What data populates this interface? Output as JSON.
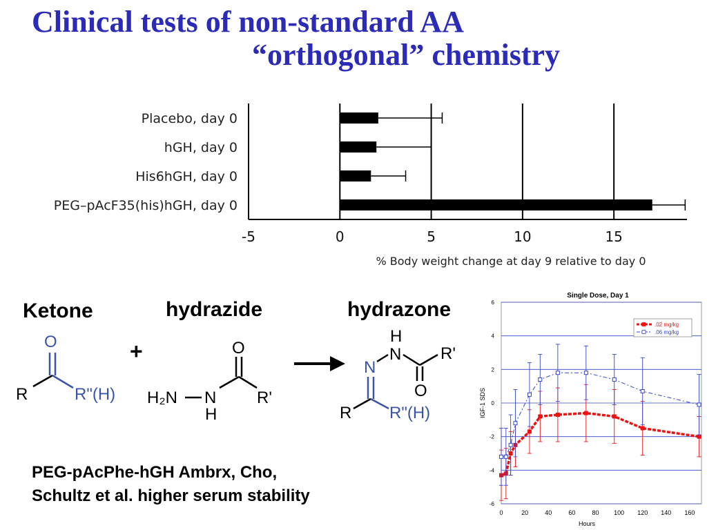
{
  "slide": {
    "title_line1": "Clinical tests of non-standard AA",
    "title_line2": "“orthogonal” chemistry",
    "caption_line1": "PEG-pAcPhe-hGH  Ambrx, Cho,",
    "caption_line2": "Schultz et al. higher serum stability"
  },
  "reaction": {
    "reactant1": "Ketone",
    "plus": "+",
    "reactant2": "hydrazide",
    "product": "hydrazone",
    "atoms": {
      "O": "O",
      "R": "R",
      "R_dblprime_H": "R\"(H)",
      "H2N": "H₂N",
      "N": "N",
      "H": "H",
      "R_prime": "R'"
    }
  },
  "chart_data": [
    {
      "type": "bar",
      "orientation": "horizontal",
      "categories": [
        "Placebo, day 0",
        "hGH, day 0",
        "His6hGH, day 0",
        "PEG–pAcF35(his)hGH, day 0"
      ],
      "values": [
        2.1,
        2.0,
        1.7,
        17.1
      ],
      "errors": [
        3.5,
        3.0,
        1.9,
        1.8
      ],
      "xlabel": "% Body weight change at day 9 relative to day 0",
      "xlim": [
        -5,
        19
      ],
      "xticks": [
        "-5",
        "0",
        "5",
        "10",
        "15"
      ],
      "gridlines_at": [
        0,
        5,
        10,
        15
      ]
    },
    {
      "type": "line",
      "title": "Single Dose, Day 1",
      "xlabel": "Hours",
      "ylabel": "IGF-1 SDS",
      "xlim": [
        0,
        170
      ],
      "ylim": [
        -6,
        6
      ],
      "xticks": [
        "0",
        "20",
        "40",
        "60",
        "80",
        "100",
        "120",
        "140",
        "160"
      ],
      "yticks": [
        "6",
        "4",
        "2",
        "0",
        "-2",
        "-4",
        "-6"
      ],
      "legend_position": "top-right",
      "colors": [
        "#ee1111",
        "#3344cc"
      ],
      "series": [
        {
          "name": ".02 mg/kg",
          "x": [
            0,
            4,
            8,
            12,
            24,
            33,
            48,
            72,
            96,
            120,
            168
          ],
          "y": [
            -4.3,
            -4.2,
            -3.0,
            -2.5,
            -1.7,
            -0.8,
            -0.7,
            -0.6,
            -0.8,
            -1.5,
            -2.0
          ],
          "err": [
            1.5,
            1.5,
            1.3,
            1.3,
            1.3,
            1.5,
            1.6,
            1.7,
            1.6,
            1.6,
            1.2
          ]
        },
        {
          "name": ".06 mg/kg",
          "x": [
            0,
            4,
            8,
            12,
            24,
            33,
            48,
            72,
            96,
            120,
            168
          ],
          "y": [
            -3.2,
            -3.2,
            -2.5,
            -1.2,
            0.5,
            1.4,
            1.8,
            1.8,
            1.4,
            0.7,
            -0.1
          ],
          "err": [
            1.7,
            1.7,
            1.8,
            2.0,
            1.9,
            1.5,
            1.7,
            1.6,
            1.5,
            2.0,
            1.8
          ]
        }
      ]
    }
  ]
}
